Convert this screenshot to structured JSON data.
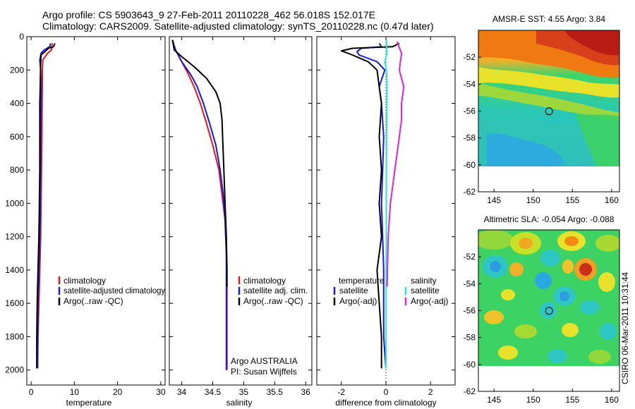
{
  "title": {
    "line1": "Argo profile: CS 5903643_9 27-Feb-2011 20110228_462 56.018S 152.017E",
    "line2": "Climatology: CARS2009. Satellite-adjusted climatology: synTS_20110228.nc (0.47d later)"
  },
  "side_label": "CSIRO 06-Mar-2011 10:31:44",
  "colors": {
    "red": "#e8141c",
    "blue": "#1818e0",
    "black": "#000000",
    "cyan": "#22e8e8",
    "magenta": "#e020e0"
  },
  "chart_data": [
    {
      "id": "temperature",
      "type": "line",
      "xlabel": "temperature",
      "ylabel": "",
      "xlim": [
        -1,
        31
      ],
      "ylim": [
        2100,
        0
      ],
      "xticks": [
        0,
        10,
        20,
        30
      ],
      "yticks": [
        0,
        200,
        400,
        600,
        800,
        1000,
        1200,
        1400,
        1600,
        1800,
        2000
      ],
      "legend": {
        "position": "lower-right",
        "entries": [
          "climatology",
          "satellite-adjusted climatology",
          "Argo(..raw -QC)"
        ]
      },
      "series": [
        {
          "name": "climatology",
          "color": "red",
          "x": [
            4.9,
            4.8,
            4.7,
            3.8,
            2.7,
            2.6,
            2.6,
            2.55,
            2.5,
            2.4,
            2.3,
            2.2,
            2.0,
            1.8,
            1.6,
            1.5
          ],
          "y": [
            40,
            60,
            80,
            100,
            140,
            200,
            300,
            400,
            600,
            800,
            1000,
            1200,
            1400,
            1600,
            1800,
            1990
          ]
        },
        {
          "name": "satellite-adjusted climatology",
          "color": "blue",
          "x": [
            4.5,
            4.3,
            3.0,
            2.3,
            2.0,
            2.2,
            2.3,
            2.3,
            2.2,
            2.2,
            2.1,
            2.0,
            1.8,
            1.6,
            1.5
          ],
          "y": [
            40,
            60,
            80,
            100,
            140,
            200,
            300,
            400,
            600,
            800,
            1000,
            1200,
            1400,
            1600,
            1990
          ]
        },
        {
          "name": "Argo(..raw -QC)",
          "color": "black",
          "x": [
            5.5,
            5.2,
            4.0,
            3.2,
            2.3,
            2.2,
            2.1,
            2.0,
            2.0,
            2.0,
            1.9,
            1.8,
            1.6,
            1.4,
            1.3,
            1.3
          ],
          "y": [
            40,
            60,
            70,
            90,
            110,
            160,
            300,
            400,
            600,
            800,
            1000,
            1200,
            1400,
            1600,
            1800,
            1990
          ]
        }
      ]
    },
    {
      "id": "salinity",
      "type": "line",
      "xlabel": "salinity",
      "ylabel": "",
      "xlim": [
        33.8,
        36.1
      ],
      "ylim": [
        2100,
        0
      ],
      "xticks": [
        34,
        34.5,
        35,
        35.5,
        36
      ],
      "yticks": [
        0,
        200,
        400,
        600,
        800,
        1000,
        1200,
        1400,
        1600,
        1800,
        2000
      ],
      "legend": {
        "position": "lower-right",
        "entries": [
          "climatology",
          "satellite adj. clim.",
          "Argo(..raw -QC)"
        ]
      },
      "annotations": [
        "Argo AUSTRALIA",
        "PI: Susan Wijffels"
      ],
      "series": [
        {
          "name": "climatology",
          "color": "red",
          "x": [
            33.85,
            33.9,
            34.0,
            34.1,
            34.2,
            34.3,
            34.4,
            34.5,
            34.6,
            34.65,
            34.7,
            34.72,
            34.73,
            34.73,
            34.73
          ],
          "y": [
            20,
            80,
            150,
            220,
            300,
            400,
            520,
            650,
            800,
            950,
            1100,
            1300,
            1500,
            1800,
            2000
          ]
        },
        {
          "name": "satellite adj. clim.",
          "color": "blue",
          "x": [
            33.85,
            33.9,
            34.0,
            34.15,
            34.25,
            34.35,
            34.45,
            34.55,
            34.62,
            34.67,
            34.7,
            34.72,
            34.72,
            34.72,
            34.72
          ],
          "y": [
            20,
            80,
            150,
            230,
            300,
            400,
            520,
            650,
            800,
            950,
            1100,
            1300,
            1500,
            1800,
            2000
          ]
        },
        {
          "name": "Argo(..raw -QC)",
          "color": "black",
          "x": [
            33.85,
            33.88,
            34.0,
            34.2,
            34.4,
            34.55,
            34.62,
            34.65,
            34.66,
            34.68,
            34.7,
            34.72,
            34.73,
            34.73
          ],
          "y": [
            20,
            80,
            120,
            180,
            250,
            330,
            400,
            500,
            600,
            800,
            1000,
            1200,
            1400,
            1500
          ]
        }
      ]
    },
    {
      "id": "difference",
      "type": "line",
      "xlabel": "difference from climatology",
      "ylabel": "",
      "xlim": [
        -3.1,
        3.1
      ],
      "ylim": [
        2100,
        0
      ],
      "xticks": [
        -2,
        0,
        2
      ],
      "yticks": [
        0,
        200,
        400,
        600,
        800,
        1000,
        1200,
        1400,
        1600,
        1800,
        2000
      ],
      "legend": {
        "position": "lower-center",
        "group_titles": [
          "temperature",
          "salinity"
        ],
        "entries": [
          "satellite",
          "Argo(-adj)",
          "satellite",
          "Argo(-adj)"
        ]
      },
      "series": [
        {
          "name": "temperature satellite",
          "color": "blue",
          "x": [
            -0.3,
            -0.2,
            -1.1,
            -1.3,
            -1.2,
            -0.4,
            -0.05,
            -0.3,
            -0.2,
            -0.1,
            -0.15,
            -0.2,
            -0.15,
            -0.1,
            -0.1,
            -0.1,
            0.0
          ],
          "y": [
            40,
            60,
            70,
            90,
            110,
            150,
            200,
            300,
            400,
            600,
            800,
            1000,
            1200,
            1400,
            1600,
            1800,
            1990
          ]
        },
        {
          "name": "temperature Argo(-adj)",
          "color": "black",
          "x": [
            0.6,
            0.3,
            -1.5,
            -2.0,
            -1.5,
            -0.8,
            -0.4,
            -0.3,
            -0.2,
            -0.3,
            -0.2,
            -0.3,
            -0.2,
            -0.4,
            -0.3,
            -0.2,
            -0.2
          ],
          "y": [
            40,
            60,
            70,
            85,
            110,
            150,
            200,
            300,
            400,
            600,
            800,
            1000,
            1200,
            1400,
            1600,
            1800,
            1990
          ]
        },
        {
          "name": "salinity satellite",
          "color": "cyan",
          "x": [
            0.02,
            0.05,
            -0.05,
            0.02,
            0.05,
            0.04,
            0.03,
            0.02,
            0.02,
            0.02,
            0.01,
            0.01,
            0.0
          ],
          "y": [
            20,
            100,
            150,
            200,
            300,
            400,
            600,
            800,
            1000,
            1200,
            1400,
            1600,
            1990
          ]
        },
        {
          "name": "salinity Argo(-adj)",
          "color": "magenta",
          "x": [
            0.5,
            0.7,
            0.6,
            0.8,
            0.7,
            0.7,
            0.6,
            0.5,
            0.4,
            0.2,
            0.1,
            0.05
          ],
          "y": [
            30,
            100,
            200,
            300,
            400,
            500,
            600,
            700,
            800,
            1000,
            1200,
            1500
          ]
        }
      ]
    },
    {
      "id": "sst_map",
      "type": "heatmap",
      "title": "AMSR-E SST: 4.55 Argo: 3.84",
      "xlim": [
        143,
        161
      ],
      "ylim": [
        -62,
        -50
      ],
      "xticks": [
        145,
        150,
        155,
        160
      ],
      "yticks": [
        -52,
        -54,
        -56,
        -58,
        -60,
        -62
      ],
      "data_extent_lat": [
        -60.1,
        -50
      ],
      "marker": {
        "lon": 152.017,
        "lat": -56.018
      }
    },
    {
      "id": "sla_map",
      "type": "heatmap",
      "title": "Altimetric SLA: -0.054 Argo: -0.088",
      "xlim": [
        143,
        161
      ],
      "ylim": [
        -62,
        -50
      ],
      "xticks": [
        145,
        150,
        155,
        160
      ],
      "yticks": [
        -52,
        -54,
        -56,
        -58,
        -60,
        -62
      ],
      "data_extent_lat": [
        -60.1,
        -50
      ],
      "marker": {
        "lon": 152.017,
        "lat": -56.018
      }
    }
  ]
}
